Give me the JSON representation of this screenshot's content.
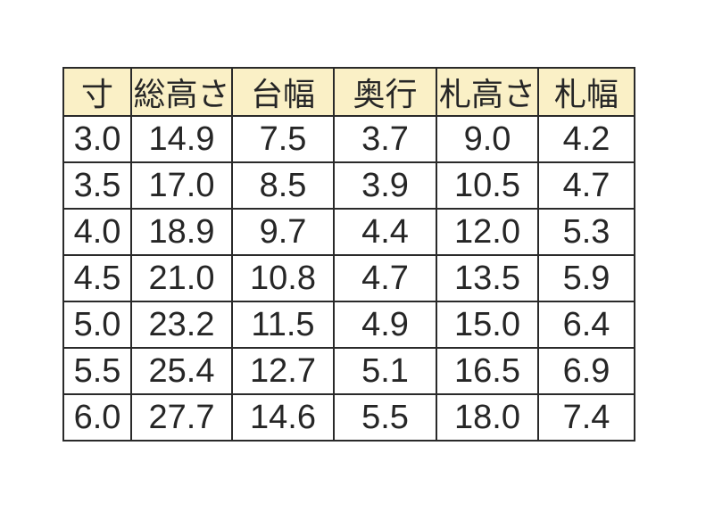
{
  "colors": {
    "page_bg": "#FFFFFF",
    "header_bg": "#FAF0C6",
    "border": "#2A2A2A",
    "text": "#262626"
  },
  "table": {
    "columns": [
      "寸",
      "総高さ",
      "台幅",
      "奥行",
      "札高さ",
      "札幅"
    ],
    "rows": [
      [
        "3.0",
        "14.9",
        "7.5",
        "3.7",
        "9.0",
        "4.2"
      ],
      [
        "3.5",
        "17.0",
        "8.5",
        "3.9",
        "10.5",
        "4.7"
      ],
      [
        "4.0",
        "18.9",
        "9.7",
        "4.4",
        "12.0",
        "5.3"
      ],
      [
        "4.5",
        "21.0",
        "10.8",
        "4.7",
        "13.5",
        "5.9"
      ],
      [
        "5.0",
        "23.2",
        "11.5",
        "4.9",
        "15.0",
        "6.4"
      ],
      [
        "5.5",
        "25.4",
        "12.7",
        "5.1",
        "16.5",
        "6.9"
      ],
      [
        "6.0",
        "27.7",
        "14.6",
        "5.5",
        "18.0",
        "7.4"
      ]
    ]
  },
  "chart_data": {
    "type": "table",
    "title": "",
    "columns": [
      "寸",
      "総高さ",
      "台幅",
      "奥行",
      "札高さ",
      "札幅"
    ],
    "rows": [
      [
        3.0,
        14.9,
        7.5,
        3.7,
        9.0,
        4.2
      ],
      [
        3.5,
        17.0,
        8.5,
        3.9,
        10.5,
        4.7
      ],
      [
        4.0,
        18.9,
        9.7,
        4.4,
        12.0,
        5.3
      ],
      [
        4.5,
        21.0,
        10.8,
        4.7,
        13.5,
        5.9
      ],
      [
        5.0,
        23.2,
        11.5,
        4.9,
        15.0,
        6.4
      ],
      [
        5.5,
        25.4,
        12.7,
        5.1,
        16.5,
        6.9
      ],
      [
        6.0,
        27.7,
        14.6,
        5.5,
        18.0,
        7.4
      ]
    ],
    "layout_hints": {
      "header_fill": "#FAF0C6",
      "grid": true,
      "alignment": "center"
    }
  }
}
